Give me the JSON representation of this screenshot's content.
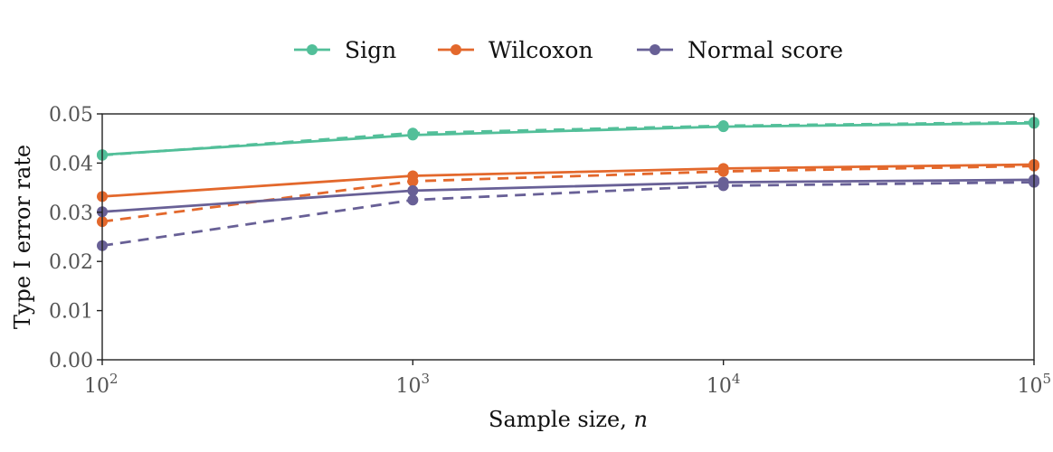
{
  "chart_data": {
    "type": "line",
    "x": [
      100,
      1000,
      10000,
      100000
    ],
    "x_tick_labels": [
      {
        "base": "10",
        "exp": "2"
      },
      {
        "base": "10",
        "exp": "3"
      },
      {
        "base": "10",
        "exp": "4"
      },
      {
        "base": "10",
        "exp": "5"
      }
    ],
    "xscale": "log",
    "xlim": [
      100,
      100000
    ],
    "xlabel": "Sample size, ",
    "xlabel_var": "n",
    "ylabel": "Type I error rate",
    "ylim": [
      0,
      0.05
    ],
    "y_ticks": [
      0.0,
      0.01,
      0.02,
      0.03,
      0.04,
      0.05
    ],
    "y_tick_labels": [
      "0.00",
      "0.01",
      "0.02",
      "0.03",
      "0.04",
      "0.05"
    ],
    "grid": false,
    "legend_position": "top",
    "line_styles": [
      "solid",
      "dashed"
    ],
    "series": [
      {
        "name": "Sign",
        "color": "#52bf99",
        "style": "solid",
        "values": [
          0.0417,
          0.0457,
          0.0474,
          0.0481
        ]
      },
      {
        "name": "Sign",
        "color": "#52bf99",
        "style": "dashed",
        "values": [
          0.0416,
          0.0461,
          0.0476,
          0.0483
        ]
      },
      {
        "name": "Wilcoxon",
        "color": "#e3682c",
        "style": "solid",
        "values": [
          0.0332,
          0.0374,
          0.0389,
          0.0397
        ]
      },
      {
        "name": "Wilcoxon",
        "color": "#e3682c",
        "style": "dashed",
        "values": [
          0.0281,
          0.0363,
          0.0383,
          0.0394
        ]
      },
      {
        "name": "Normal score",
        "color": "#686096",
        "style": "solid",
        "values": [
          0.0301,
          0.0344,
          0.0361,
          0.0366
        ]
      },
      {
        "name": "Normal score",
        "color": "#686096",
        "style": "dashed",
        "values": [
          0.0232,
          0.0325,
          0.0354,
          0.0361
        ]
      }
    ],
    "legend": [
      {
        "name": "Sign",
        "color": "#52bf99"
      },
      {
        "name": "Wilcoxon",
        "color": "#e3682c"
      },
      {
        "name": "Normal score",
        "color": "#686096"
      }
    ]
  }
}
